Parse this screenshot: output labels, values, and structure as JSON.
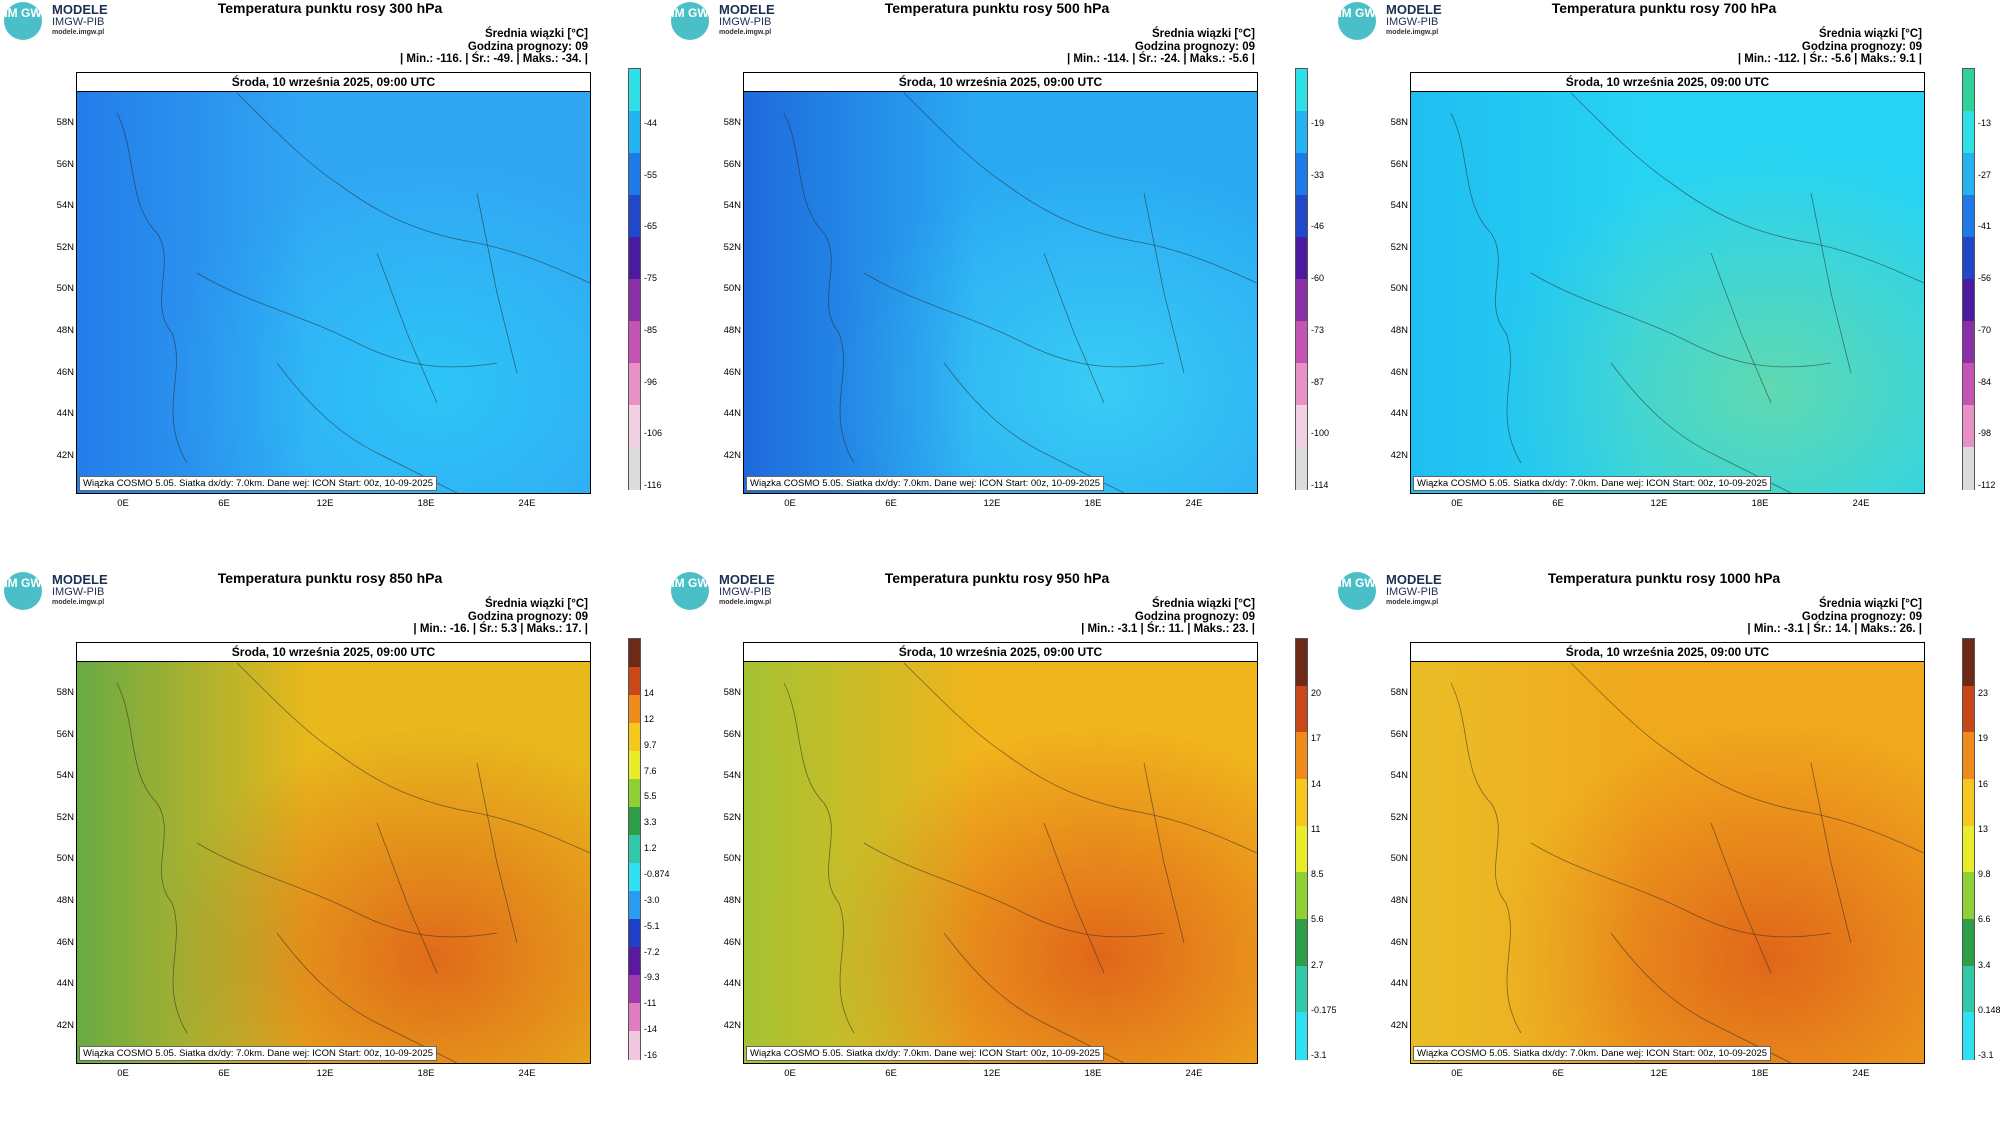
{
  "panels": [
    {
      "title": "Temperatura punktu rosy 300 hPa",
      "meta": {
        "line1": "Średnia wiązki [°C]",
        "line2": "Godzina prognozy: 09",
        "line3": "| Min.:  -116. | Śr.:  -49. | Maks.:  -34. |"
      },
      "colorbar": {
        "labels": [
          "-44",
          "-55",
          "-65",
          "-75",
          "-85",
          "-96",
          "-106",
          "-116"
        ],
        "colors": [
          "#2ee0e6",
          "#23b4f0",
          "#1f7ae8",
          "#2048c8",
          "#4a1aa0",
          "#8a2fa6",
          "#c454b4",
          "#e891c6",
          "#f0d0e2",
          "#dcdcdc"
        ]
      },
      "fill": [
        "#31a6f3",
        "#1f6fe6",
        "#2dc5f7"
      ]
    },
    {
      "title": "Temperatura punktu rosy 500 hPa",
      "meta": {
        "line1": "Średnia wiązki [°C]",
        "line2": "Godzina prognozy: 09",
        "line3": "| Min.:  -114. | Śr.:  -24. | Maks.:  -5.6 |"
      },
      "colorbar": {
        "labels": [
          "-19",
          "-33",
          "-46",
          "-60",
          "-73",
          "-87",
          "-100",
          "-114"
        ],
        "colors": [
          "#2ee0e6",
          "#23b4f0",
          "#1f7ae8",
          "#2048c8",
          "#4a1aa0",
          "#8a2fa6",
          "#c454b4",
          "#e891c6",
          "#f0d0e2",
          "#dcdcdc"
        ]
      },
      "fill": [
        "#2aa9f3",
        "#1a55d4",
        "#39ccf5"
      ]
    },
    {
      "title": "Temperatura punktu rosy 700 hPa",
      "meta": {
        "line1": "Średnia wiązki [°C]",
        "line2": "Godzina prognozy: 09",
        "line3": "| Min.:  -112. | Śr.:  -5.6 | Maks.:  9.1 |"
      },
      "colorbar": {
        "labels": [
          "-13",
          "-27",
          "-41",
          "-56",
          "-70",
          "-84",
          "-98",
          "-112"
        ],
        "colors": [
          "#2fd39a",
          "#2ee0e6",
          "#23b4f0",
          "#1f7ae8",
          "#2048c8",
          "#4a1aa0",
          "#8a2fa6",
          "#c454b4",
          "#e891c6",
          "#dcdcdc"
        ]
      },
      "fill": [
        "#27d3f3",
        "#1fb6f0",
        "#5fd9b0"
      ]
    },
    {
      "title": "Temperatura punktu rosy 850 hPa",
      "meta": {
        "line1": "Średnia wiązki [°C]",
        "line2": "Godzina prognozy: 09",
        "line3": "| Min.:  -16. | Śr.:  5.3 | Maks.:  17. |"
      },
      "colorbar": {
        "labels": [
          "14",
          "12",
          "9.7",
          "7.6",
          "5.5",
          "3.3",
          "1.2",
          "-0.874",
          "-3.0",
          "-5.1",
          "-7.2",
          "-9.3",
          "-11",
          "-14",
          "-16"
        ],
        "colors": [
          "#6e2a16",
          "#c8481a",
          "#ef8a1c",
          "#f6c81e",
          "#e8ec2c",
          "#8ed036",
          "#2e9e48",
          "#33c8a8",
          "#30e0f0",
          "#2a9cf0",
          "#2040c8",
          "#5a1aa0",
          "#a03aae",
          "#e07cc0",
          "#f2c8e0"
        ]
      },
      "fill": [
        "#e8b81c",
        "#3ea650",
        "#e06a1a"
      ]
    },
    {
      "title": "Temperatura punktu rosy 950 hPa",
      "meta": {
        "line1": "Średnia wiązki [°C]",
        "line2": "Godzina prognozy: 09",
        "line3": "| Min.:  -3.1 | Śr.:  11. | Maks.:  23. |"
      },
      "colorbar": {
        "labels": [
          "20",
          "17",
          "14",
          "11",
          "8.5",
          "5.6",
          "2.7",
          "-0.175",
          "-3.1"
        ],
        "colors": [
          "#6e2a16",
          "#c8481a",
          "#ef8a1c",
          "#f6c81e",
          "#e8ec2c",
          "#8ed036",
          "#2e9e48",
          "#33c8a8",
          "#30e0f0"
        ]
      },
      "fill": [
        "#f0b41c",
        "#8cc83a",
        "#e0661a"
      ]
    },
    {
      "title": "Temperatura punktu rosy 1000 hPa",
      "meta": {
        "line1": "Średnia wiązki [°C]",
        "line2": "Godzina prognozy: 09",
        "line3": "| Min.:  -3.1 | Śr.:  14. | Maks.:  26. |"
      },
      "colorbar": {
        "labels": [
          "23",
          "19",
          "16",
          "13",
          "9.8",
          "6.6",
          "3.4",
          "0.148",
          "-3.1"
        ],
        "colors": [
          "#6e2a16",
          "#c8481a",
          "#ef8a1c",
          "#f6c81e",
          "#e8ec2c",
          "#8ed036",
          "#2e9e48",
          "#33c8a8",
          "#30e0f0"
        ]
      },
      "fill": [
        "#f0a81c",
        "#e8c42a",
        "#e0661a"
      ]
    }
  ],
  "common": {
    "logo_line1": "MODELE",
    "logo_line2": "IMGW-PIB",
    "logo_line3": "modele.imgw.pl",
    "logo_mark": "IM GW",
    "map_header": "Środa, 10 września 2025, 09:00 UTC",
    "map_footer": "Wiązka COSMO 5.05. Siatka dx/dy: 7.0km. Dane wej: ICON Start: 00z, 10-09-2025",
    "lat_labels": [
      "58N",
      "56N",
      "54N",
      "52N",
      "50N",
      "48N",
      "46N",
      "44N",
      "42N"
    ],
    "lon_labels": [
      "0E",
      "6E",
      "12E",
      "18E",
      "24E"
    ]
  }
}
